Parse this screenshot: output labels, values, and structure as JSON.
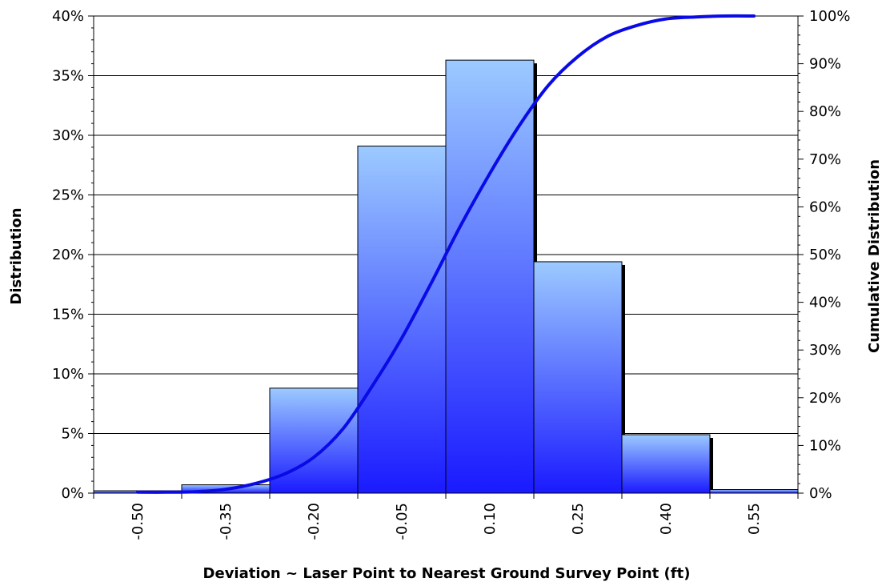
{
  "chart_data": {
    "type": "bar",
    "title": "",
    "xlabel": "Deviation ~ Laser Point to Nearest Ground Survey Point (ft)",
    "ylabel": "Distribution",
    "y2label": "Cumulative Distribution",
    "categories": [
      "-0.50",
      "-0.35",
      "-0.20",
      "-0.05",
      "0.10",
      "0.25",
      "0.40",
      "0.55"
    ],
    "series": [
      {
        "type": "bar",
        "values": [
          0.2,
          0.7,
          8.8,
          29.1,
          36.3,
          19.4,
          4.9,
          0.3
        ]
      },
      {
        "type": "line",
        "axis": "right",
        "x": [
          -0.5,
          -0.45,
          -0.4,
          -0.35,
          -0.3,
          -0.25,
          -0.2,
          -0.15,
          -0.1,
          -0.05,
          0.0,
          0.05,
          0.1,
          0.15,
          0.2,
          0.25,
          0.3,
          0.35,
          0.4,
          0.45,
          0.5,
          0.55
        ],
        "values": [
          0.2,
          0.2,
          0.3,
          0.8,
          2.0,
          4.0,
          7.5,
          13.5,
          22.5,
          32.5,
          44.0,
          56.0,
          67.0,
          77.0,
          85.5,
          91.5,
          95.7,
          98.0,
          99.4,
          99.8,
          100.0,
          100.0
        ]
      }
    ],
    "yTicks": [
      "0%",
      "5%",
      "10%",
      "15%",
      "20%",
      "25%",
      "30%",
      "35%",
      "40%"
    ],
    "y2Ticks": [
      "0%",
      "10%",
      "20%",
      "30%",
      "40%",
      "50%",
      "60%",
      "70%",
      "80%",
      "90%",
      "100%"
    ],
    "ylim": [
      0,
      40
    ],
    "y2lim": [
      0,
      100
    ],
    "xlim": [
      -0.575,
      0.625
    ],
    "grid": true,
    "legend": "none",
    "colors": {
      "bar_top": "#9ccaff",
      "bar_bottom": "#1a1aff",
      "bar_shadow": "#000000",
      "line": "#0a0ae6",
      "grid": "#000000"
    }
  }
}
